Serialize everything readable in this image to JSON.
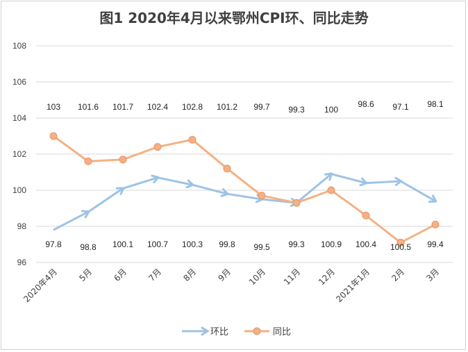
{
  "chart_data": {
    "type": "line",
    "title": "图1  2020年4月以来鄂州CPI环、同比走势",
    "categories": [
      "2020年4月",
      "5月",
      "6月",
      "7月",
      "8月",
      "9月",
      "10月",
      "11月",
      "12月",
      "2021年1月",
      "2月",
      "3月"
    ],
    "ylim": [
      96,
      108
    ],
    "yticks": [
      "96",
      "98",
      "100",
      "102",
      "104",
      "106",
      "108"
    ],
    "grid": true,
    "legend_position": "bottom",
    "series": [
      {
        "name": "环比",
        "color": "#9dc3e6",
        "marker": "arrow",
        "values": [
          97.8,
          98.8,
          100.1,
          100.7,
          100.3,
          99.8,
          99.5,
          99.3,
          100.9,
          100.4,
          100.5,
          99.4
        ],
        "labels": [
          "97.8",
          "98.8",
          "100.1",
          "100.7",
          "100.3",
          "99.8",
          "99.5",
          "99.3",
          "100.9",
          "100.4",
          "100.5",
          "99.4"
        ]
      },
      {
        "name": "同比",
        "color": "#f4b183",
        "marker": "circle",
        "values": [
          103,
          101.6,
          101.7,
          102.4,
          102.8,
          101.2,
          99.7,
          99.3,
          100,
          98.6,
          97.1,
          98.1
        ],
        "labels": [
          "103",
          "101.6",
          "101.7",
          "102.4",
          "102.8",
          "101.2",
          "99.7",
          "99.3",
          "100",
          "98.6",
          "97.1",
          "98.1"
        ]
      }
    ]
  }
}
